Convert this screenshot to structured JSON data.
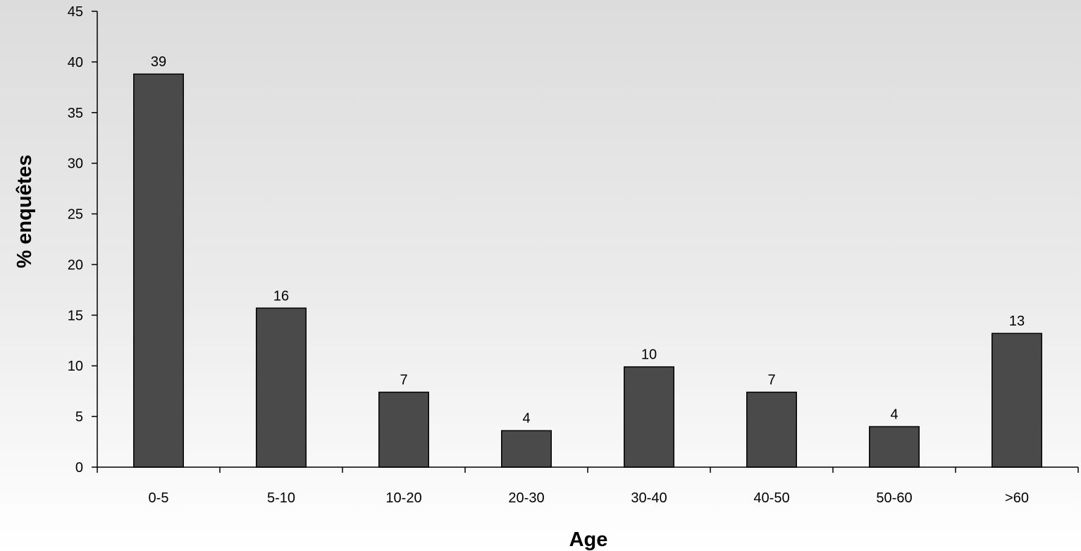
{
  "chart_data": {
    "type": "bar",
    "title": "",
    "xlabel": "Age",
    "ylabel": "% enquêtes",
    "categories": [
      "0-5",
      "5-10",
      "10-20",
      "20-30",
      "30-40",
      "40-50",
      "50-60",
      ">60"
    ],
    "values": [
      38.8,
      15.7,
      7.4,
      3.6,
      9.9,
      7.4,
      4.0,
      13.2
    ],
    "data_labels": [
      "39",
      "16",
      "7",
      "4",
      "10",
      "7",
      "4",
      "13"
    ],
    "ylim": [
      0,
      45
    ],
    "yticks": [
      "0",
      "5",
      "10",
      "15",
      "20",
      "25",
      "30",
      "35",
      "40",
      "45"
    ],
    "grid": false,
    "legend": "none",
    "colors": {
      "bar_fill": "#4a4a4a",
      "bar_stroke": "#000000",
      "axis": "#000000"
    }
  }
}
